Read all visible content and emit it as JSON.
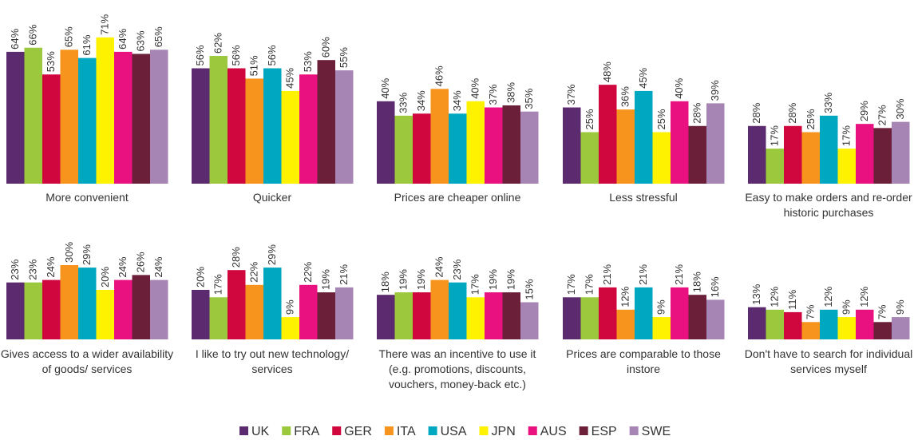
{
  "chart_data": {
    "type": "bar",
    "categories": [
      "More convenient",
      "Quicker",
      "Prices are cheaper online",
      "Less stressful",
      "Easy to make orders and re-order historic purchases",
      "Gives access to a wider availability of goods/ services",
      "I like to try out new technology/ services",
      "There was an incentive to use it (e.g. promotions, discounts, vouchers, money-back etc.)",
      "Prices are comparable to those instore",
      "Don't have to search for individual services myself"
    ],
    "series": [
      {
        "name": "UK",
        "color": "#5c2a6e",
        "values": [
          64,
          56,
          40,
          37,
          28,
          23,
          20,
          18,
          17,
          13
        ],
        "value_labels": [
          "64%",
          "56%",
          "40%",
          "37%",
          "28%",
          "23%",
          "20%",
          "18%",
          "17%",
          "13%"
        ]
      },
      {
        "name": "FRA",
        "color": "#9bc83c",
        "values": [
          66,
          62,
          33,
          25,
          17,
          23,
          17,
          19,
          17,
          12
        ],
        "value_labels": [
          "66%",
          "62%",
          "33%",
          "25%",
          "17%",
          "23%",
          "17%",
          "19%",
          "17%",
          "12%"
        ]
      },
      {
        "name": "GER",
        "color": "#d0063f",
        "values": [
          53,
          56,
          34,
          48,
          28,
          24,
          28,
          19,
          21,
          11
        ],
        "value_labels": [
          "53%",
          "56%",
          "34%",
          "48%",
          "28%",
          "24%",
          "28%",
          "19%",
          "21%",
          "11%"
        ]
      },
      {
        "name": "ITA",
        "color": "#f7941d",
        "values": [
          65,
          51,
          46,
          36,
          25,
          30,
          22,
          24,
          12,
          7
        ],
        "value_labels": [
          "65%",
          "51%",
          "46%",
          "36%",
          "25%",
          "30%",
          "22%",
          "24%",
          "12%",
          "7%"
        ]
      },
      {
        "name": "USA",
        "color": "#00a7c0",
        "values": [
          61,
          56,
          34,
          45,
          33,
          29,
          29,
          23,
          21,
          12
        ],
        "value_labels": [
          "61%",
          "56%",
          "34%",
          "45%",
          "33%",
          "29%",
          "29%",
          "23%",
          "21%",
          "12%"
        ]
      },
      {
        "name": "JPN",
        "color": "#fff200",
        "values": [
          71,
          45,
          40,
          25,
          17,
          20,
          9,
          17,
          9,
          9
        ],
        "value_labels": [
          "71%",
          "45%",
          "40%",
          "25%",
          "17%",
          "20%",
          "9%",
          "17%",
          "9%",
          "9%"
        ]
      },
      {
        "name": "AUS",
        "color": "#e8117f",
        "values": [
          64,
          53,
          37,
          40,
          29,
          24,
          22,
          19,
          21,
          12
        ],
        "value_labels": [
          "64%",
          "53%",
          "37%",
          "40%",
          "29%",
          "24%",
          "22%",
          "19%",
          "21%",
          "12%"
        ]
      },
      {
        "name": "ESP",
        "color": "#6b1f38",
        "values": [
          63,
          60,
          38,
          28,
          27,
          26,
          19,
          19,
          18,
          7
        ],
        "value_labels": [
          "63%",
          "60%",
          "38%",
          "28%",
          "27%",
          "26%",
          "19%",
          "19%",
          "18%",
          "7%"
        ]
      },
      {
        "name": "SWE",
        "color": "#a685b5",
        "values": [
          65,
          55,
          35,
          39,
          30,
          24,
          21,
          15,
          16,
          9
        ],
        "value_labels": [
          "65%",
          "55%",
          "35%",
          "39%",
          "30%",
          "24%",
          "21%",
          "15%",
          "16%",
          "9%"
        ]
      }
    ]
  }
}
